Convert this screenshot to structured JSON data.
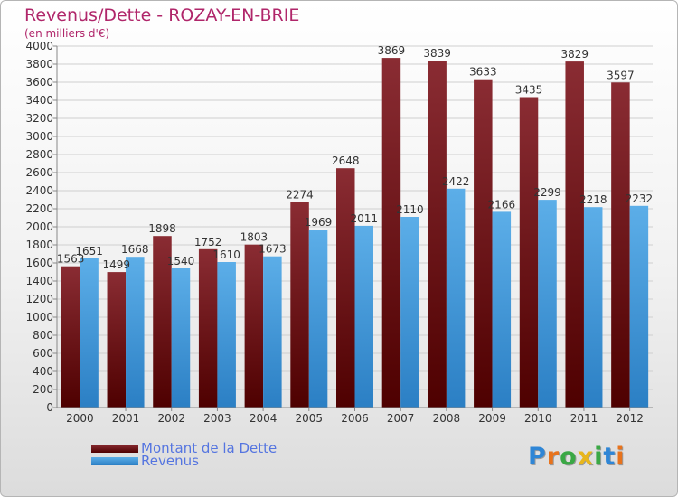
{
  "header": {
    "title": "Revenus/Dette - ROZAY-EN-BRIE",
    "subtitle": "(en milliers d'€)"
  },
  "legend": {
    "debt_label": "Montant de la Dette",
    "revenue_label": "Revenus"
  },
  "logo": {
    "letters": [
      "P",
      "r",
      "o",
      "x",
      "i",
      "t",
      "i"
    ],
    "colors": [
      "#2f86d6",
      "#e8731c",
      "#3aa845",
      "#e8b61c",
      "#3aa845",
      "#2f86d6",
      "#e8731c"
    ]
  },
  "colors": {
    "debt_top": "#8a2c33",
    "debt_bottom": "#4e0000",
    "revenue_top": "#5caee8",
    "revenue_bottom": "#2b7fc4"
  },
  "chart_data": {
    "type": "bar",
    "title": "Revenus/Dette - ROZAY-EN-BRIE",
    "subtitle": "(en milliers d'€)",
    "categories": [
      "2000",
      "2001",
      "2002",
      "2003",
      "2004",
      "2005",
      "2006",
      "2007",
      "2008",
      "2009",
      "2010",
      "2011",
      "2012"
    ],
    "series": [
      {
        "name": "Montant de la Dette",
        "values": [
          1563,
          1499,
          1898,
          1752,
          1803,
          2274,
          2648,
          3869,
          3839,
          3633,
          3435,
          3829,
          3597
        ]
      },
      {
        "name": "Revenus",
        "values": [
          1651,
          1668,
          1540,
          1610,
          1673,
          1969,
          2011,
          2110,
          2422,
          2166,
          2299,
          2218,
          2232
        ]
      }
    ],
    "yticks": [
      "0",
      "200",
      "400",
      "600",
      "800",
      "1000",
      "1200",
      "1400",
      "1600",
      "1800",
      "2000",
      "2200",
      "2400",
      "2600",
      "2800",
      "3000",
      "3200",
      "3400",
      "3600",
      "3800",
      "4000"
    ],
    "ylim": [
      0,
      4000
    ],
    "grid": true,
    "legend_position": "bottom-left"
  }
}
